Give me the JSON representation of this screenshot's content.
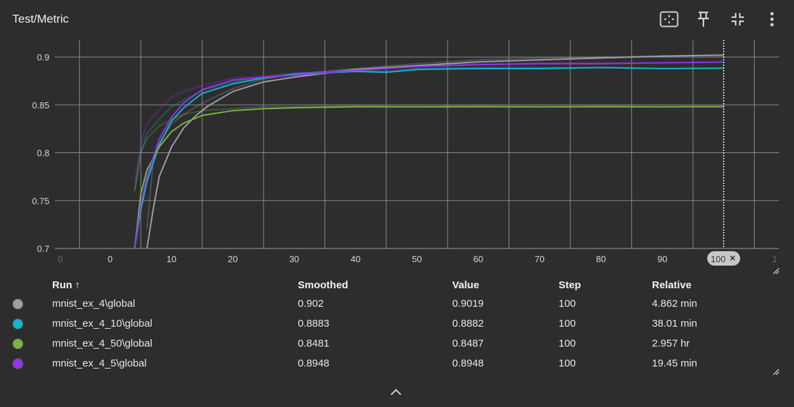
{
  "header": {
    "title": "Test/Metric"
  },
  "toolbar": [
    {
      "name": "fit-domain-icon",
      "label": "Fit domain to data"
    },
    {
      "name": "pin-icon",
      "label": "Pin card"
    },
    {
      "name": "collapse-icon",
      "label": "Toggle full size"
    },
    {
      "name": "more-vert-icon",
      "label": "More actions"
    }
  ],
  "chart_data": {
    "type": "line",
    "title": "Test/Metric",
    "xlabel": "",
    "ylabel": "",
    "xlim": [
      -9,
      109
    ],
    "ylim": [
      0.7,
      0.918
    ],
    "x_ticks": [
      "0",
      "10",
      "20",
      "30",
      "40",
      "50",
      "60",
      "70",
      "80",
      "90"
    ],
    "x_tick_values": [
      0,
      10,
      20,
      30,
      40,
      50,
      60,
      70,
      80,
      90
    ],
    "x_edge_labels": [
      "0",
      "1"
    ],
    "y_ticks": [
      "0.9",
      "0.85",
      "0.8",
      "0.75",
      "0.7"
    ],
    "y_tick_values": [
      0.9,
      0.85,
      0.8,
      0.75,
      0.7
    ],
    "grid": true,
    "cursor_step": 100,
    "cursor_label": "100",
    "series": [
      {
        "name": "mnist_ex_4\\global",
        "color": "#9aa0a6",
        "x": [
          6,
          7,
          8,
          10,
          12,
          14,
          16,
          20,
          25,
          30,
          35,
          40,
          50,
          60,
          70,
          80,
          90,
          100
        ],
        "y": [
          0.7,
          0.74,
          0.775,
          0.806,
          0.826,
          0.839,
          0.849,
          0.864,
          0.874,
          0.879,
          0.883,
          0.887,
          0.891,
          0.895,
          0.897,
          0.899,
          0.901,
          0.902
        ],
        "raw_y": [
          0.72,
          0.79,
          0.81,
          0.83,
          0.84,
          0.848,
          0.855,
          0.867,
          0.877,
          0.882,
          0.885,
          0.888,
          0.893,
          0.897,
          0.899,
          0.9,
          0.901,
          0.9019
        ]
      },
      {
        "name": "mnist_ex_4_10\\global",
        "color": "#12b5cb",
        "x": [
          4,
          5,
          6,
          8,
          10,
          12,
          15,
          20,
          25,
          30,
          40,
          45,
          50,
          60,
          70,
          80,
          90,
          100
        ],
        "y": [
          0.7,
          0.74,
          0.77,
          0.808,
          0.833,
          0.847,
          0.862,
          0.872,
          0.878,
          0.882,
          0.885,
          0.884,
          0.887,
          0.888,
          0.888,
          0.889,
          0.888,
          0.8883
        ],
        "raw_y": [
          0.76,
          0.8,
          0.82,
          0.835,
          0.848,
          0.855,
          0.865,
          0.874,
          0.879,
          0.883,
          0.886,
          0.885,
          0.888,
          0.889,
          0.889,
          0.889,
          0.888,
          0.8882
        ]
      },
      {
        "name": "mnist_ex_4_50\\global",
        "color": "#7cb342",
        "x": [
          4,
          5,
          6,
          8,
          10,
          12,
          15,
          20,
          25,
          30,
          40,
          50,
          60,
          70,
          80,
          90,
          100
        ],
        "y": [
          0.7,
          0.757,
          0.782,
          0.806,
          0.822,
          0.831,
          0.839,
          0.844,
          0.846,
          0.847,
          0.848,
          0.848,
          0.848,
          0.848,
          0.848,
          0.848,
          0.8481
        ],
        "raw_y": [
          0.76,
          0.8,
          0.815,
          0.828,
          0.835,
          0.84,
          0.844,
          0.846,
          0.848,
          0.848,
          0.849,
          0.848,
          0.849,
          0.848,
          0.849,
          0.848,
          0.8487
        ]
      },
      {
        "name": "mnist_ex_4_5\\global",
        "color": "#9334e6",
        "x": [
          4,
          5,
          6,
          8,
          10,
          12,
          15,
          20,
          25,
          30,
          40,
          50,
          60,
          70,
          80,
          90,
          100
        ],
        "y": [
          0.7,
          0.746,
          0.775,
          0.814,
          0.837,
          0.852,
          0.866,
          0.876,
          0.879,
          0.881,
          0.886,
          0.89,
          0.892,
          0.893,
          0.893,
          0.894,
          0.8948
        ],
        "raw_y": [
          0.77,
          0.81,
          0.83,
          0.845,
          0.858,
          0.864,
          0.87,
          0.878,
          0.88,
          0.883,
          0.887,
          0.891,
          0.893,
          0.894,
          0.894,
          0.894,
          0.8948
        ]
      }
    ]
  },
  "table": {
    "headers": {
      "run": "Run",
      "sort_arrow": "↑",
      "smoothed": "Smoothed",
      "value": "Value",
      "step": "Step",
      "relative": "Relative"
    },
    "rows": [
      {
        "run": "mnist_ex_4\\global",
        "color": "#9aa0a6",
        "smoothed": "0.902",
        "value": "0.9019",
        "step": "100",
        "relative": "4.862 min"
      },
      {
        "run": "mnist_ex_4_10\\global",
        "color": "#12b5cb",
        "smoothed": "0.8883",
        "value": "0.8882",
        "step": "100",
        "relative": "38.01 min"
      },
      {
        "run": "mnist_ex_4_50\\global",
        "color": "#7cb342",
        "smoothed": "0.8481",
        "value": "0.8487",
        "step": "100",
        "relative": "2.957 hr"
      },
      {
        "run": "mnist_ex_4_5\\global",
        "color": "#9334e6",
        "smoothed": "0.8948",
        "value": "0.8948",
        "step": "100",
        "relative": "19.45 min"
      }
    ]
  },
  "footer": {
    "expand_icon": "chevron-up-icon"
  }
}
